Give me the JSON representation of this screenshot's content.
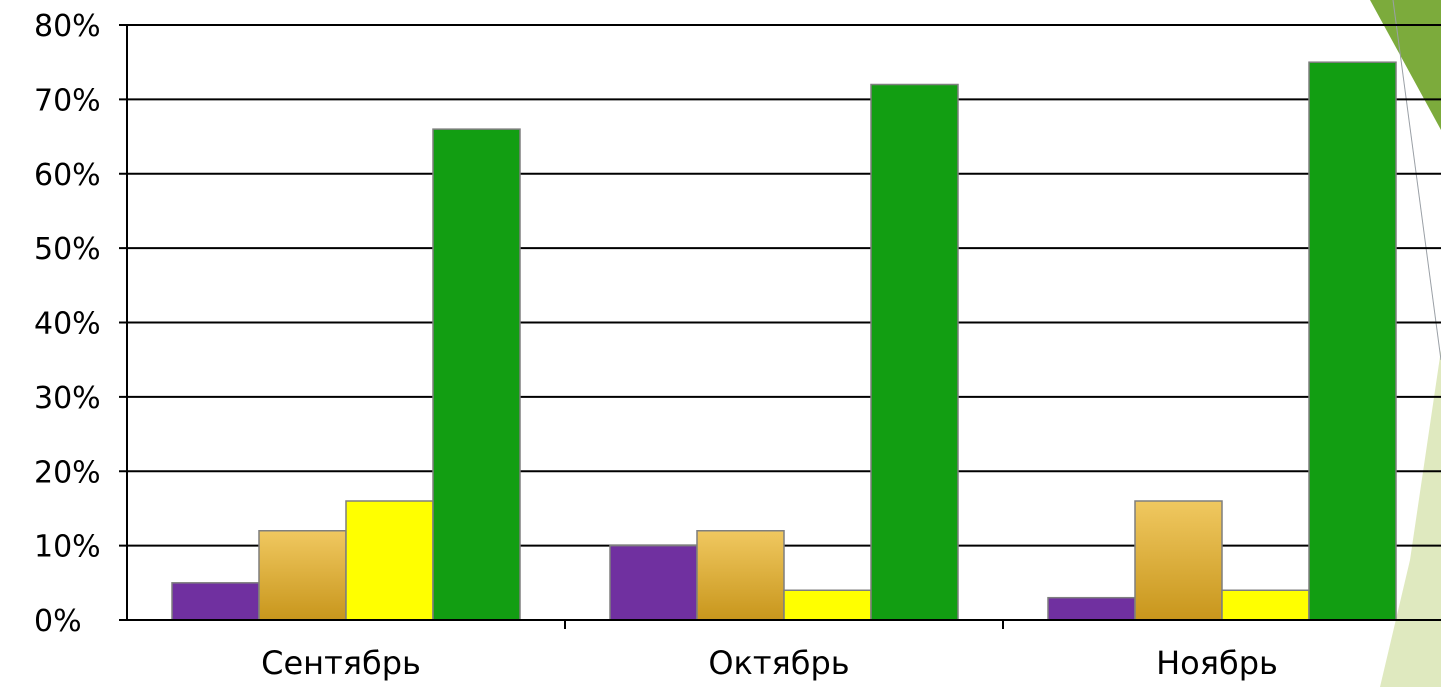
{
  "chart_data": {
    "type": "bar",
    "title": "",
    "xlabel": "",
    "ylabel": "",
    "categories": [
      "Сентябрь",
      "Октябрь",
      "Ноябрь"
    ],
    "series": [
      {
        "color": "#7030a0",
        "values": [
          5,
          10,
          3
        ]
      },
      {
        "color": "#e0a82e",
        "values": [
          12,
          12,
          16
        ]
      },
      {
        "color": "#ffff00",
        "values": [
          16,
          4,
          4
        ]
      },
      {
        "color": "#129e12",
        "values": [
          66,
          72,
          75
        ]
      }
    ],
    "ylim": [
      0,
      80
    ],
    "y_ticks": [
      "0%",
      "10%",
      "20%",
      "30%",
      "40%",
      "50%",
      "60%",
      "70%",
      "80%"
    ],
    "grid": true,
    "legend": "none"
  },
  "decor": {
    "accent_color": "#7cab3c",
    "accent_light": "#dfe9bf"
  }
}
